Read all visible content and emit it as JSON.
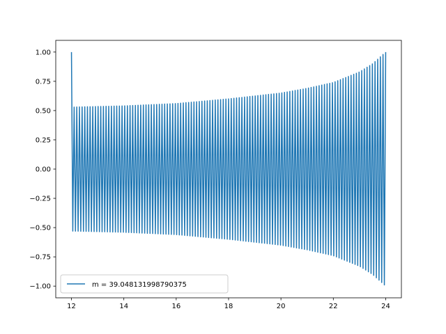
{
  "chart_data": {
    "type": "line",
    "title": "",
    "xlabel": "",
    "ylabel": "",
    "xlim": [
      11.4,
      24.6
    ],
    "ylim": [
      -1.1,
      1.1
    ],
    "x_ticks": [
      12,
      14,
      16,
      18,
      20,
      22,
      24
    ],
    "x_tick_labels": [
      "12",
      "14",
      "16",
      "18",
      "20",
      "22",
      "24"
    ],
    "y_ticks": [
      1.0,
      0.75,
      0.5,
      0.25,
      0.0,
      -0.25,
      -0.5,
      -0.75,
      -1.0
    ],
    "y_tick_labels": [
      "1.00",
      "0.75",
      "0.50",
      "0.25",
      "0.00",
      "−0.25",
      "−0.50",
      "−0.75",
      "−1.00"
    ],
    "grid": false,
    "legend_position": "lower left",
    "series": [
      {
        "name": "m = 39.048131998790375",
        "color": "#1f77b4",
        "x_range": [
          12,
          24
        ],
        "initial_value": 1.0,
        "cycles": 118,
        "envelope_x": [
          12.1,
          14,
          16,
          18,
          20,
          21,
          22,
          23,
          23.5,
          24
        ],
        "envelope_amplitude": [
          0.53,
          0.54,
          0.56,
          0.6,
          0.65,
          0.69,
          0.74,
          0.83,
          0.9,
          1.0
        ]
      }
    ]
  }
}
